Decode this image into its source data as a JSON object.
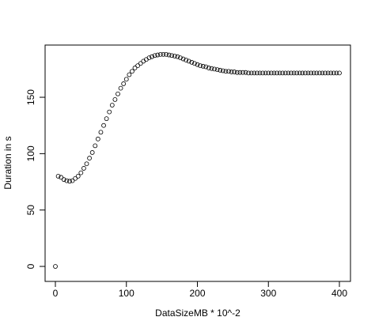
{
  "chart_data": {
    "type": "scatter",
    "x_label": "DataSizeMB * 10^-2",
    "y_label": "Duration in s",
    "x": [
      0,
      4,
      8,
      12,
      16,
      20,
      24,
      28,
      32,
      36,
      40,
      44,
      48,
      52,
      56,
      60,
      64,
      68,
      72,
      76,
      80,
      84,
      88,
      92,
      96,
      100,
      104,
      108,
      112,
      116,
      120,
      124,
      128,
      132,
      136,
      140,
      144,
      148,
      152,
      156,
      160,
      164,
      168,
      172,
      176,
      180,
      184,
      188,
      192,
      196,
      200,
      204,
      208,
      212,
      216,
      220,
      224,
      228,
      232,
      236,
      240,
      244,
      248,
      252,
      256,
      260,
      264,
      268,
      272,
      276,
      280,
      284,
      288,
      292,
      296,
      300,
      304,
      308,
      312,
      316,
      320,
      324,
      328,
      332,
      336,
      340,
      344,
      348,
      352,
      356,
      360,
      364,
      368,
      372,
      376,
      380,
      384,
      388,
      392,
      396,
      400
    ],
    "values": [
      0,
      80,
      79,
      77,
      76,
      75.5,
      76,
      78,
      80,
      83,
      87,
      91,
      96,
      101,
      107,
      113,
      119,
      125,
      131,
      137,
      143,
      148,
      153,
      158,
      162,
      166,
      170,
      173,
      176,
      178,
      180,
      182,
      183.5,
      185,
      186,
      187,
      187.5,
      188,
      188,
      188,
      187.5,
      187,
      186.5,
      186,
      185,
      184,
      183,
      182,
      181,
      180,
      179,
      178,
      177.5,
      177,
      176,
      175.5,
      175,
      174.5,
      174,
      173.5,
      173,
      173,
      172.5,
      172.5,
      172,
      172,
      172,
      172,
      171.5,
      171.5,
      171.5,
      171.5,
      171.5,
      171.5,
      171.5,
      171.5,
      171.5,
      171.5,
      171.5,
      171.5,
      171.5,
      171.5,
      171.5,
      171.5,
      171.5,
      171.5,
      171.5,
      171.5,
      171.5,
      171.5,
      171.5,
      171.5,
      171.5,
      171.5,
      171.5,
      171.5,
      171.5,
      171.5,
      171.5,
      171.5,
      171.5
    ],
    "color": "#000000",
    "xlim": [
      -14.5,
      415.6
    ],
    "xticks": [
      0,
      100,
      200,
      300,
      400
    ],
    "ylim": [
      -13.3,
      196.3
    ],
    "yticks": [
      0,
      50,
      100,
      150
    ],
    "grid": false
  }
}
